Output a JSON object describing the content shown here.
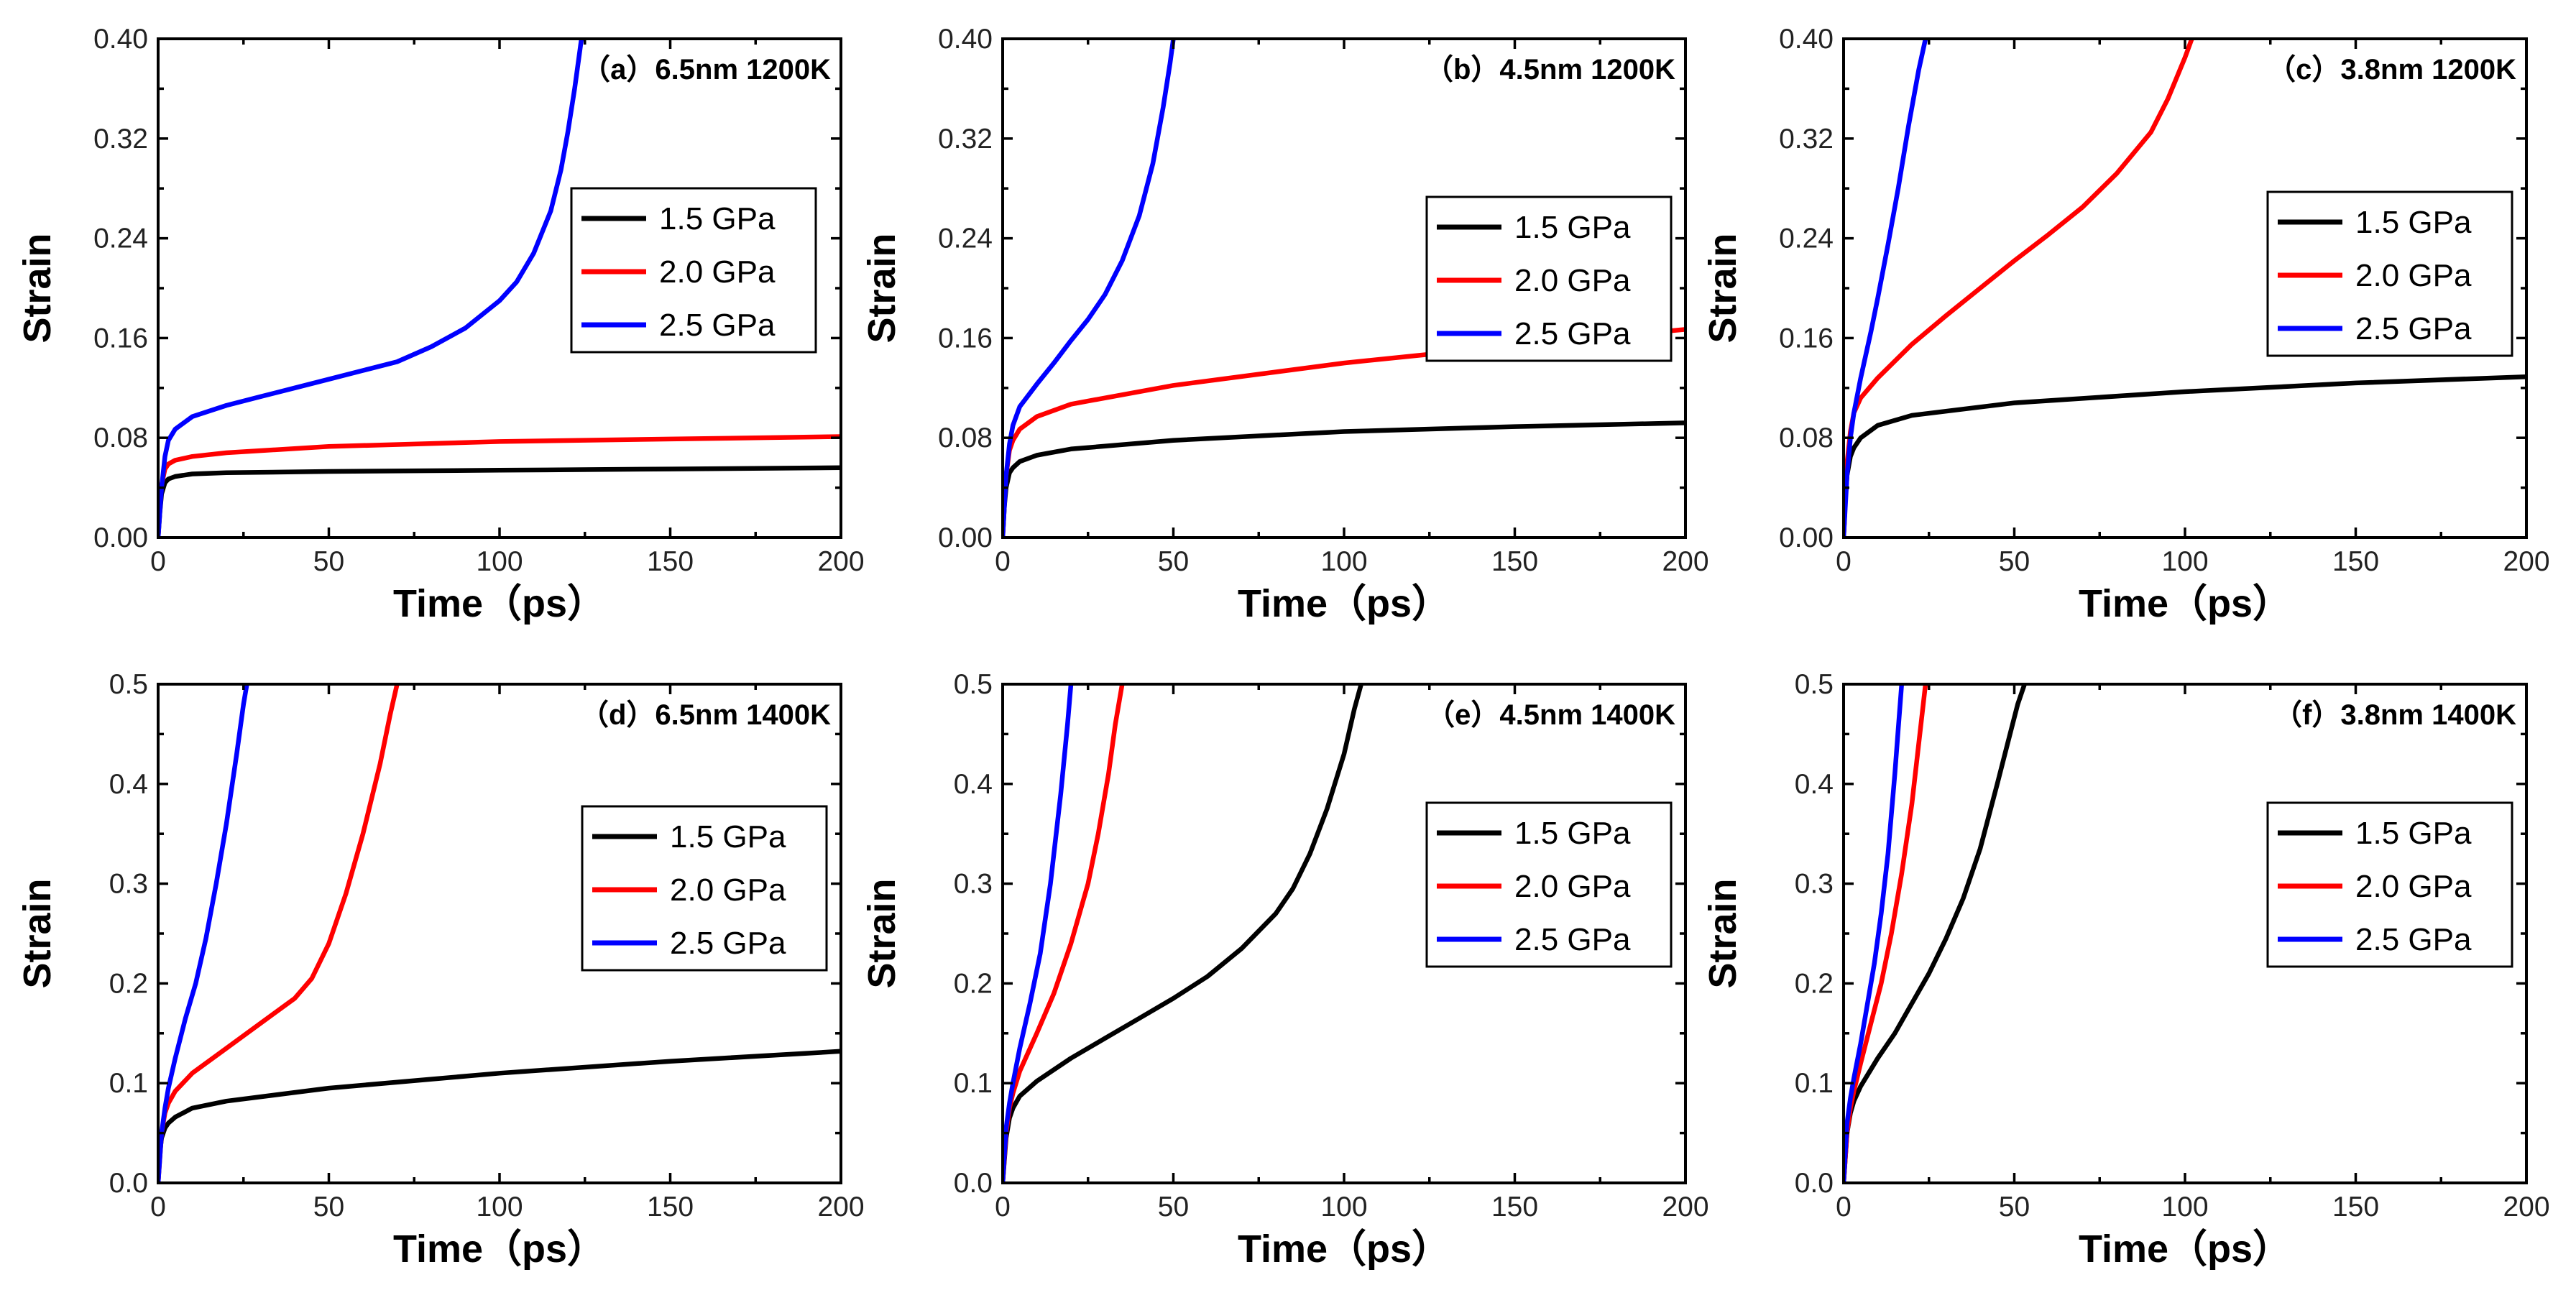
{
  "chart_data": [
    {
      "type": "line",
      "title": "（a）6.5nm 1200K",
      "xlabel": "Time（ps）",
      "ylabel": "Strain",
      "xlim": [
        0,
        200
      ],
      "ylim": [
        0,
        0.4
      ],
      "xticks": [
        "0",
        "50",
        "100",
        "150",
        "200"
      ],
      "yticks": [
        "0.00",
        "0.08",
        "0.16",
        "0.24",
        "0.32",
        "0.40"
      ],
      "legend_position": "upper-right",
      "series": [
        {
          "name": "1.5 GPa",
          "color": "#000000",
          "x": [
            0,
            0.5,
            1,
            2,
            3,
            5,
            10,
            20,
            50,
            100,
            150,
            200
          ],
          "y": [
            0,
            0.02,
            0.035,
            0.044,
            0.047,
            0.049,
            0.051,
            0.052,
            0.053,
            0.054,
            0.055,
            0.056
          ]
        },
        {
          "name": "2.0 GPa",
          "color": "#ff0000",
          "x": [
            0,
            0.5,
            1,
            2,
            3,
            5,
            10,
            20,
            50,
            100,
            150,
            200
          ],
          "y": [
            0,
            0.025,
            0.042,
            0.055,
            0.059,
            0.062,
            0.065,
            0.068,
            0.073,
            0.077,
            0.079,
            0.081
          ]
        },
        {
          "name": "2.5 GPa",
          "color": "#0000ff",
          "x": [
            0,
            1,
            2,
            3,
            5,
            10,
            20,
            30,
            40,
            50,
            60,
            70,
            80,
            90,
            100,
            105,
            110,
            115,
            118,
            120,
            122,
            124
          ],
          "y": [
            0,
            0.04,
            0.065,
            0.078,
            0.087,
            0.097,
            0.106,
            0.113,
            0.12,
            0.127,
            0.134,
            0.141,
            0.153,
            0.168,
            0.19,
            0.205,
            0.228,
            0.262,
            0.295,
            0.325,
            0.36,
            0.4
          ]
        }
      ]
    },
    {
      "type": "line",
      "title": "（b）4.5nm 1200K",
      "xlabel": "Time（ps）",
      "ylabel": "Strain",
      "xlim": [
        0,
        200
      ],
      "ylim": [
        0,
        0.4
      ],
      "xticks": [
        "0",
        "50",
        "100",
        "150",
        "200"
      ],
      "yticks": [
        "0.00",
        "0.08",
        "0.16",
        "0.24",
        "0.32",
        "0.40"
      ],
      "legend_position": "upper-right",
      "series": [
        {
          "name": "1.5 GPa",
          "color": "#000000",
          "x": [
            0,
            0.5,
            1,
            2,
            3,
            5,
            10,
            20,
            50,
            100,
            150,
            200
          ],
          "y": [
            0,
            0.025,
            0.04,
            0.052,
            0.056,
            0.061,
            0.066,
            0.071,
            0.078,
            0.085,
            0.089,
            0.092
          ]
        },
        {
          "name": "2.0 GPa",
          "color": "#ff0000",
          "x": [
            0,
            0.5,
            1,
            2,
            3,
            5,
            10,
            20,
            50,
            100,
            150,
            200
          ],
          "y": [
            0,
            0.03,
            0.05,
            0.07,
            0.078,
            0.087,
            0.097,
            0.107,
            0.122,
            0.14,
            0.154,
            0.167
          ]
        },
        {
          "name": "2.5 GPa",
          "color": "#0000ff",
          "x": [
            0,
            1,
            2,
            3,
            5,
            10,
            15,
            20,
            25,
            30,
            35,
            40,
            44,
            47,
            49,
            50
          ],
          "y": [
            0,
            0.05,
            0.075,
            0.09,
            0.105,
            0.123,
            0.14,
            0.158,
            0.175,
            0.195,
            0.222,
            0.258,
            0.3,
            0.345,
            0.38,
            0.4
          ]
        }
      ]
    },
    {
      "type": "line",
      "title": "（c）3.8nm 1200K",
      "xlabel": "Time（ps）",
      "ylabel": "Strain",
      "xlim": [
        0,
        200
      ],
      "ylim": [
        0,
        0.4
      ],
      "xticks": [
        "0",
        "50",
        "100",
        "150",
        "200"
      ],
      "yticks": [
        "0.00",
        "0.08",
        "0.16",
        "0.24",
        "0.32",
        "0.40"
      ],
      "legend_position": "upper-right",
      "series": [
        {
          "name": "1.5 GPa",
          "color": "#000000",
          "x": [
            0,
            0.5,
            1,
            2,
            3,
            5,
            10,
            20,
            50,
            100,
            150,
            200
          ],
          "y": [
            0,
            0.03,
            0.05,
            0.065,
            0.072,
            0.08,
            0.09,
            0.098,
            0.108,
            0.117,
            0.124,
            0.129
          ]
        },
        {
          "name": "2.0 GPa",
          "color": "#ff0000",
          "x": [
            0,
            1,
            2,
            3,
            5,
            10,
            20,
            30,
            40,
            50,
            60,
            70,
            80,
            90,
            95,
            100,
            102
          ],
          "y": [
            0,
            0.06,
            0.085,
            0.1,
            0.112,
            0.128,
            0.155,
            0.178,
            0.2,
            0.222,
            0.243,
            0.265,
            0.292,
            0.325,
            0.352,
            0.385,
            0.4
          ]
        },
        {
          "name": "2.5 GPa",
          "color": "#0000ff",
          "x": [
            0,
            1,
            2,
            3,
            5,
            8,
            10,
            13,
            16,
            19,
            22,
            24
          ],
          "y": [
            0,
            0.05,
            0.08,
            0.1,
            0.128,
            0.165,
            0.192,
            0.235,
            0.28,
            0.33,
            0.375,
            0.4
          ]
        }
      ]
    },
    {
      "type": "line",
      "title": "（d）6.5nm 1400K",
      "xlabel": "Time（ps）",
      "ylabel": "Strain",
      "xlim": [
        0,
        200
      ],
      "ylim": [
        0,
        0.5
      ],
      "xticks": [
        "0",
        "50",
        "100",
        "150",
        "200"
      ],
      "yticks": [
        "0.0",
        "0.1",
        "0.2",
        "0.3",
        "0.4",
        "0.5"
      ],
      "legend_position": "center-right",
      "series": [
        {
          "name": "1.5 GPa",
          "color": "#000000",
          "x": [
            0,
            0.5,
            1,
            2,
            3,
            5,
            10,
            20,
            50,
            100,
            150,
            200
          ],
          "y": [
            0,
            0.03,
            0.045,
            0.055,
            0.06,
            0.066,
            0.075,
            0.082,
            0.095,
            0.11,
            0.122,
            0.132
          ]
        },
        {
          "name": "2.0 GPa",
          "color": "#ff0000",
          "x": [
            0,
            1,
            2,
            3,
            5,
            10,
            20,
            30,
            40,
            45,
            50,
            55,
            60,
            65,
            68,
            70
          ],
          "y": [
            0,
            0.05,
            0.07,
            0.08,
            0.092,
            0.11,
            0.135,
            0.16,
            0.185,
            0.205,
            0.24,
            0.29,
            0.35,
            0.42,
            0.47,
            0.5
          ]
        },
        {
          "name": "2.5 GPa",
          "color": "#0000ff",
          "x": [
            0,
            1,
            2,
            3,
            5,
            8,
            11,
            14,
            17,
            20,
            23,
            25,
            26
          ],
          "y": [
            0,
            0.05,
            0.075,
            0.095,
            0.125,
            0.165,
            0.2,
            0.245,
            0.3,
            0.36,
            0.43,
            0.48,
            0.5
          ]
        }
      ]
    },
    {
      "type": "line",
      "title": "（e）4.5nm 1400K",
      "xlabel": "Time（ps）",
      "ylabel": "Strain",
      "xlim": [
        0,
        200
      ],
      "ylim": [
        0,
        0.5
      ],
      "xticks": [
        "0",
        "50",
        "100",
        "150",
        "200"
      ],
      "yticks": [
        "0.0",
        "0.1",
        "0.2",
        "0.3",
        "0.4",
        "0.5"
      ],
      "legend_position": "center-right",
      "series": [
        {
          "name": "1.5 GPa",
          "color": "#000000",
          "x": [
            0,
            1,
            2,
            3,
            5,
            10,
            20,
            30,
            40,
            50,
            60,
            70,
            80,
            85,
            90,
            95,
            100,
            103,
            105
          ],
          "y": [
            0,
            0.045,
            0.065,
            0.075,
            0.087,
            0.102,
            0.125,
            0.145,
            0.165,
            0.185,
            0.207,
            0.235,
            0.27,
            0.295,
            0.33,
            0.375,
            0.43,
            0.475,
            0.5
          ]
        },
        {
          "name": "2.0 GPa",
          "color": "#ff0000",
          "x": [
            0,
            1,
            2,
            3,
            5,
            10,
            15,
            20,
            25,
            28,
            31,
            33,
            35
          ],
          "y": [
            0,
            0.05,
            0.075,
            0.09,
            0.112,
            0.15,
            0.19,
            0.24,
            0.3,
            0.35,
            0.41,
            0.46,
            0.5
          ]
        },
        {
          "name": "2.5 GPa",
          "color": "#0000ff",
          "x": [
            0,
            1,
            2,
            3,
            5,
            8,
            11,
            14,
            17,
            19,
            20
          ],
          "y": [
            0,
            0.055,
            0.08,
            0.1,
            0.135,
            0.18,
            0.23,
            0.3,
            0.39,
            0.46,
            0.5
          ]
        }
      ]
    },
    {
      "type": "line",
      "title": "（f）3.8nm 1400K",
      "xlabel": "Time（ps）",
      "ylabel": "Strain",
      "xlim": [
        0,
        200
      ],
      "ylim": [
        0,
        0.5
      ],
      "xticks": [
        "0",
        "50",
        "100",
        "150",
        "200"
      ],
      "yticks": [
        "0.0",
        "0.1",
        "0.2",
        "0.3",
        "0.4",
        "0.5"
      ],
      "legend_position": "center-right",
      "series": [
        {
          "name": "1.5 GPa",
          "color": "#000000",
          "x": [
            0,
            1,
            2,
            3,
            5,
            10,
            15,
            20,
            25,
            30,
            35,
            40,
            45,
            48,
            51,
            53
          ],
          "y": [
            0,
            0.05,
            0.07,
            0.082,
            0.097,
            0.125,
            0.15,
            0.18,
            0.21,
            0.245,
            0.285,
            0.335,
            0.4,
            0.44,
            0.48,
            0.5
          ]
        },
        {
          "name": "2.0 GPa",
          "color": "#ff0000",
          "x": [
            0,
            1,
            2,
            3,
            5,
            8,
            11,
            14,
            17,
            20,
            22,
            24
          ],
          "y": [
            0,
            0.05,
            0.075,
            0.092,
            0.12,
            0.16,
            0.2,
            0.25,
            0.31,
            0.38,
            0.44,
            0.5
          ]
        },
        {
          "name": "2.5 GPa",
          "color": "#0000ff",
          "x": [
            0,
            1,
            2,
            3,
            5,
            7,
            9,
            11,
            13,
            15,
            16,
            17
          ],
          "y": [
            0,
            0.06,
            0.085,
            0.105,
            0.14,
            0.18,
            0.22,
            0.27,
            0.33,
            0.41,
            0.455,
            0.5
          ]
        }
      ]
    }
  ]
}
